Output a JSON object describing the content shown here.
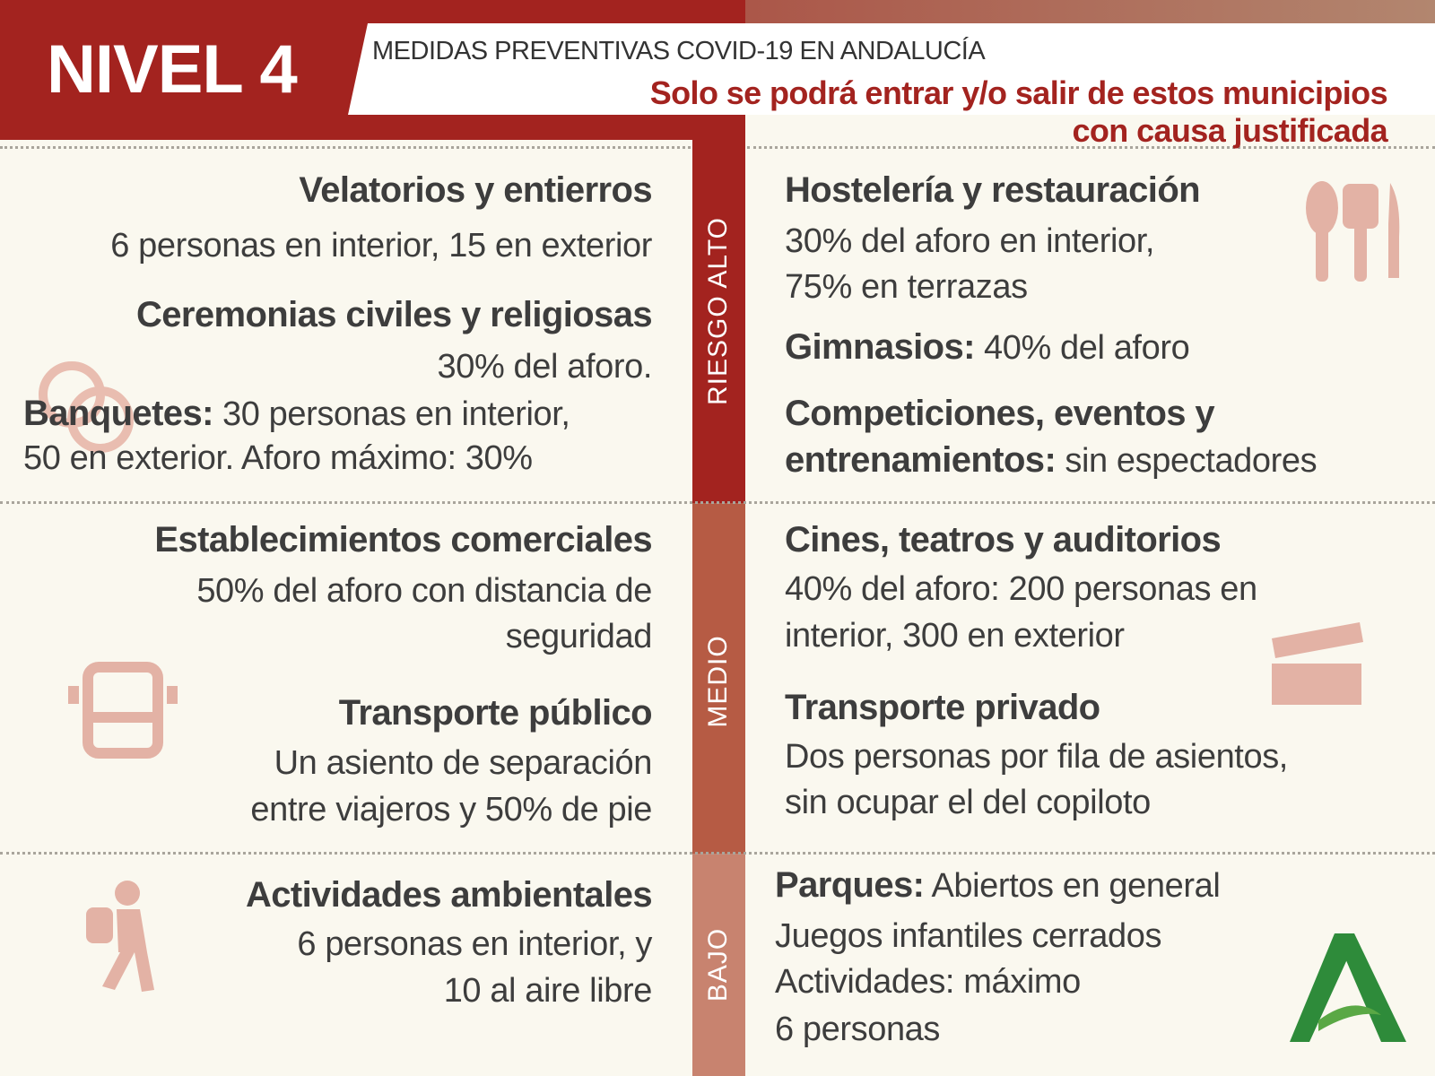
{
  "header": {
    "level": "NIVEL 4",
    "subtitle": "MEDIDAS PREVENTIVAS COVID-19 EN ANDALUCÍA",
    "notice": [
      "Solo se podrá entrar y/o salir de estos municipios",
      "con causa justificada"
    ]
  },
  "levels": [
    {
      "label": "RIESGO ALTO",
      "left": [
        {
          "title": "Velatorios y entierros",
          "lines": [
            "6 personas en interior, 15 en exterior"
          ]
        },
        {
          "title": "Ceremonias civiles y religiosas",
          "lines": [
            "30% del aforo."
          ]
        },
        {
          "title": "Banquetes:",
          "lines": [
            "30 personas en interior,",
            "50 en exterior. Aforo máximo: 30%"
          ]
        }
      ],
      "right": [
        {
          "title": "Hostelería y restauración",
          "lines": [
            "30% del aforo en interior,",
            "75% en terrazas"
          ]
        },
        {
          "title": "Gimnasios:",
          "lines": [
            "40% del aforo"
          ]
        },
        {
          "title": [
            "Competiciones, eventos y",
            "entrenamientos:"
          ],
          "lines": [
            "sin espectadores"
          ]
        }
      ]
    },
    {
      "label": "MEDIO",
      "left": [
        {
          "title": "Establecimientos comerciales",
          "lines": [
            "50% del aforo con distancia de",
            "seguridad"
          ]
        },
        {
          "title": "Transporte público",
          "lines": [
            "Un asiento de separación",
            "entre viajeros y 50% de pie"
          ]
        }
      ],
      "right": [
        {
          "title": "Cines, teatros y auditorios",
          "lines": [
            "40% del aforo: 200 personas en",
            "interior, 300 en exterior"
          ]
        },
        {
          "title": "Transporte privado",
          "lines": [
            "Dos personas por fila de asientos,",
            "sin ocupar el del copiloto"
          ]
        }
      ]
    },
    {
      "label": "BAJO",
      "left": [
        {
          "title": "Actividades ambientales",
          "lines": [
            "6 personas en interior, y",
            "10 al aire libre"
          ]
        }
      ],
      "right": [
        {
          "title": "Parques:",
          "lines": [
            "Abiertos en general",
            "Juegos infantiles cerrados",
            "Actividades: máximo",
            "6 personas"
          ]
        }
      ]
    }
  ]
}
